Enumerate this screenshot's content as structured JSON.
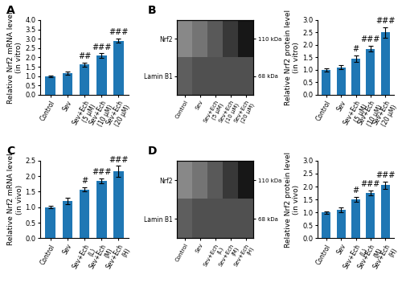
{
  "chart_data": [
    {
      "type": "bar",
      "title": "A",
      "categories": [
        "Control",
        "Sev",
        "Sev+Ech\n(5 μM)",
        "Sev+Ech\n(10 μM)",
        "Sev+Ech\n(20 μM)"
      ],
      "values": [
        1.0,
        1.15,
        1.62,
        2.1,
        2.9
      ],
      "errors": [
        0.04,
        0.08,
        0.1,
        0.12,
        0.1
      ],
      "annotations": [
        null,
        null,
        "##",
        "###",
        "###"
      ],
      "ylabel": "Relative Nrf2 mRNA level\n(in vitro)",
      "ylim": [
        0,
        4.0
      ],
      "yticks": [
        {
          "value": 0,
          "label": "0.0"
        },
        0.5,
        {
          "value": 1,
          "label": "1.0"
        },
        1.5,
        {
          "value": 2,
          "label": "2.0"
        },
        2.5,
        {
          "value": 3,
          "label": "3.0"
        },
        3.5,
        {
          "value": 4,
          "label": "4.0"
        }
      ]
    },
    {
      "type": "heatmap",
      "title": "B",
      "categories": [
        "Control",
        "Sev",
        "Sev+Ech\n(5 μM)",
        "Sev+Ech\n(10 μM)",
        "Sev+Ech\n(20 μM)"
      ],
      "y_categories": [
        "Nrf2",
        "Lamin B1"
      ],
      "y2_categories": [
        "110 kDa",
        "68 kDa"
      ],
      "cells": [
        [
          0.55,
          0.62,
          0.72,
          0.82,
          0.92
        ],
        [
          0.7,
          0.75,
          0.75,
          0.75,
          0.75
        ]
      ],
      "clim": [
        0,
        1
      ]
    },
    {
      "type": "bar",
      "categories": [
        "Control",
        "Sev",
        "Sev+Ech\n(5 μM)",
        "Sev+Ech\n(10 μM)",
        "Sev+Ech\n(20 μM)"
      ],
      "values": [
        1.0,
        1.1,
        1.45,
        1.85,
        2.5
      ],
      "errors": [
        0.06,
        0.08,
        0.12,
        0.12,
        0.22
      ],
      "annotations": [
        null,
        null,
        "#",
        "###",
        "###"
      ],
      "ylabel": "Relative Nrf2 protein level\n(in vitro)",
      "ylim": [
        0,
        3.0
      ],
      "yticks": [
        {
          "value": 0,
          "label": "0.0"
        },
        0.5,
        {
          "value": 1,
          "label": "1.0"
        },
        1.5,
        {
          "value": 2,
          "label": "2.0"
        },
        2.5,
        {
          "value": 3,
          "label": "3.0"
        }
      ]
    },
    {
      "type": "bar",
      "title": "C",
      "categories": [
        "Control",
        "Sev",
        "Sev+Ech\n(L)",
        "Sev+Ech\n(M)",
        "Sev+Ech\n(H)"
      ],
      "values": [
        1.0,
        1.2,
        1.57,
        1.85,
        2.15
      ],
      "errors": [
        0.04,
        0.1,
        0.07,
        0.09,
        0.18
      ],
      "annotations": [
        null,
        null,
        "#",
        "###",
        "###"
      ],
      "ylabel": "Relative Nrf2 mRNA level\n(in vivo)",
      "ylim": [
        0,
        2.5
      ],
      "yticks": [
        {
          "value": 0,
          "label": "0.0"
        },
        0.5,
        {
          "value": 1,
          "label": "1.0"
        },
        1.5,
        {
          "value": 2,
          "label": "2.0"
        },
        2.5
      ]
    },
    {
      "type": "heatmap",
      "title": "D",
      "categories": [
        "Control",
        "Sev",
        "Sev+Ech\n(L)",
        "Sev+Ech\n(M)",
        "Sev+Ech\n(H)"
      ],
      "y_categories": [
        "Nrf2",
        "Lamin B1"
      ],
      "y2_categories": [
        "110 kDa",
        "68 kDa"
      ],
      "cells": [
        [
          0.55,
          0.62,
          0.72,
          0.82,
          0.92
        ],
        [
          0.7,
          0.75,
          0.75,
          0.75,
          0.75
        ]
      ],
      "clim": [
        0,
        1
      ]
    },
    {
      "type": "bar",
      "categories": [
        "Control",
        "Sev",
        "Sev+Ech\n(L)",
        "Sev+Ech\n(M)",
        "Sev+Ech\n(H)"
      ],
      "values": [
        1.0,
        1.1,
        1.5,
        1.75,
        2.05
      ],
      "errors": [
        0.05,
        0.1,
        0.1,
        0.1,
        0.15
      ],
      "annotations": [
        null,
        null,
        "#",
        "###",
        "###"
      ],
      "ylabel": "Relative Nrf2 protein level\n(in vivo)",
      "ylim": [
        0,
        3.0
      ],
      "yticks": [
        {
          "value": 0,
          "label": "0.0"
        },
        0.5,
        {
          "value": 1,
          "label": "1.0"
        },
        1.5,
        {
          "value": 2,
          "label": "2.0"
        },
        2.5,
        {
          "value": 3,
          "label": "3.0"
        }
      ]
    }
  ]
}
